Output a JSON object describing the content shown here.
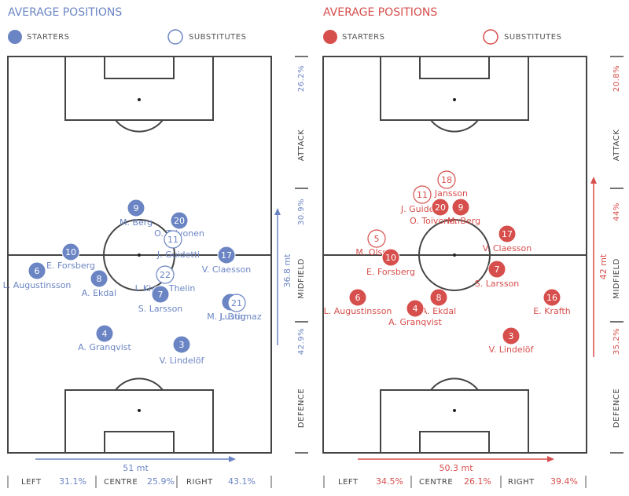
{
  "panels": [
    {
      "title": "AVERAGE POSITIONS",
      "legend": {
        "starters": "STARTERS",
        "substitutes": "SUBSTITUTES"
      },
      "zones": [
        {
          "label": "ATTACK",
          "percent": "26.2%"
        },
        {
          "label": "MIDFIELD",
          "percent": "30.9%"
        },
        {
          "label": "DEFENCE",
          "percent": "42.9%"
        }
      ],
      "vertical_length": "36.8 mt",
      "horizontal_length": "51 mt",
      "thirds": [
        {
          "label": "LEFT",
          "value": "31.1%"
        },
        {
          "label": "CENTRE",
          "value": "25.9%"
        },
        {
          "label": "RIGHT",
          "value": "43.1%"
        }
      ],
      "players": [
        {
          "number": "9",
          "name": "M. Berg"
        },
        {
          "number": "20",
          "name": "O. Toivonen"
        },
        {
          "number": "11",
          "name": "J. Guidetti"
        },
        {
          "number": "10",
          "name": "E. Forsberg"
        },
        {
          "number": "17",
          "name": "V. Claesson"
        },
        {
          "number": "6",
          "name": "L. Augustinsson"
        },
        {
          "number": "8",
          "name": "A. Ekdal"
        },
        {
          "number": "22",
          "name": "I. Kiese Thelin"
        },
        {
          "number": "7",
          "name": "S. Larsson"
        },
        {
          "number": "2",
          "name": "M. Lustig"
        },
        {
          "number": "21",
          "name": "J. Durmaz"
        },
        {
          "number": "4",
          "name": "A. Granqvist"
        },
        {
          "number": "3",
          "name": "V. Lindelöf"
        }
      ]
    },
    {
      "title": "AVERAGE POSITIONS",
      "legend": {
        "starters": "STARTERS",
        "substitutes": "SUBSTITUTES"
      },
      "zones": [
        {
          "label": "ATTACK",
          "percent": "20.8%"
        },
        {
          "label": "MIDFIELD",
          "percent": "44%"
        },
        {
          "label": "DEFENCE",
          "percent": "35.2%"
        }
      ],
      "vertical_length": "42 mt",
      "horizontal_length": "50.3 mt",
      "thirds": [
        {
          "label": "LEFT",
          "value": "34.5%"
        },
        {
          "label": "CENTRE",
          "value": "26.1%"
        },
        {
          "label": "RIGHT",
          "value": "39.4%"
        }
      ],
      "players": [
        {
          "number": "18",
          "name": "P. Jansson"
        },
        {
          "number": "11",
          "name": "J. Guidetti"
        },
        {
          "number": "20",
          "name": "O. Toivonen"
        },
        {
          "number": "9",
          "name": "M. Berg"
        },
        {
          "number": "17",
          "name": "V. Claesson"
        },
        {
          "number": "5",
          "name": "M. Olsson"
        },
        {
          "number": "10",
          "name": "E. Forsberg"
        },
        {
          "number": "7",
          "name": "S. Larsson"
        },
        {
          "number": "6",
          "name": "L. Augustinsson"
        },
        {
          "number": "8",
          "name": "A. Ekdal"
        },
        {
          "number": "4",
          "name": "A. Granqvist"
        },
        {
          "number": "16",
          "name": "E. Krafth"
        },
        {
          "number": "3",
          "name": "V. Lindelöf"
        }
      ]
    }
  ]
}
